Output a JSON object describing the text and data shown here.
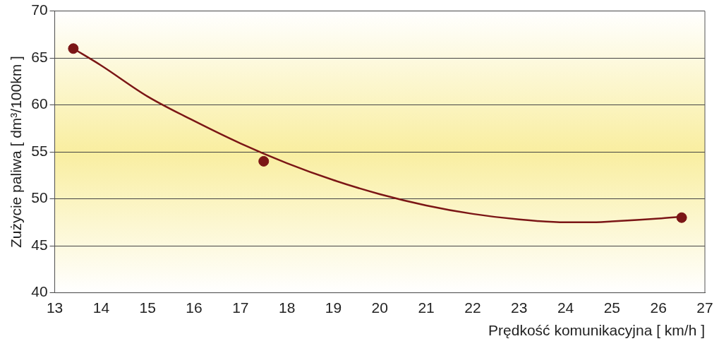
{
  "chart_data": {
    "type": "scatter",
    "xlabel": "Prędkość komunikacyjna [ km/h ]",
    "ylabel": "Zużycie paliwa [ dm³/100km ]",
    "series": [
      {
        "type": "scatter",
        "color": "#7b1616",
        "x": [
          13.4,
          17.5,
          26.5
        ],
        "values": [
          66,
          54,
          48
        ],
        "marker": "circle"
      },
      {
        "type": "line",
        "color": "#7b1616",
        "x": [
          13.4,
          14,
          15,
          16,
          17,
          18,
          19,
          20,
          21,
          22,
          23,
          24,
          24.5,
          25,
          26,
          26.5
        ],
        "values": [
          66,
          64.2,
          60.9,
          58.3,
          55.9,
          53.8,
          52,
          50.5,
          49.3,
          48.4,
          47.8,
          47.5,
          47.5,
          47.6,
          47.9,
          48.1
        ],
        "marker": "none"
      }
    ],
    "xlim": [
      13,
      27
    ],
    "xticks": [
      13,
      14,
      15,
      16,
      17,
      18,
      19,
      20,
      21,
      22,
      23,
      24,
      25,
      26,
      27
    ],
    "ylim": [
      40,
      70
    ],
    "yticks": [
      40,
      45,
      50,
      55,
      60,
      65,
      70
    ],
    "grid": "y",
    "legend": false
  }
}
